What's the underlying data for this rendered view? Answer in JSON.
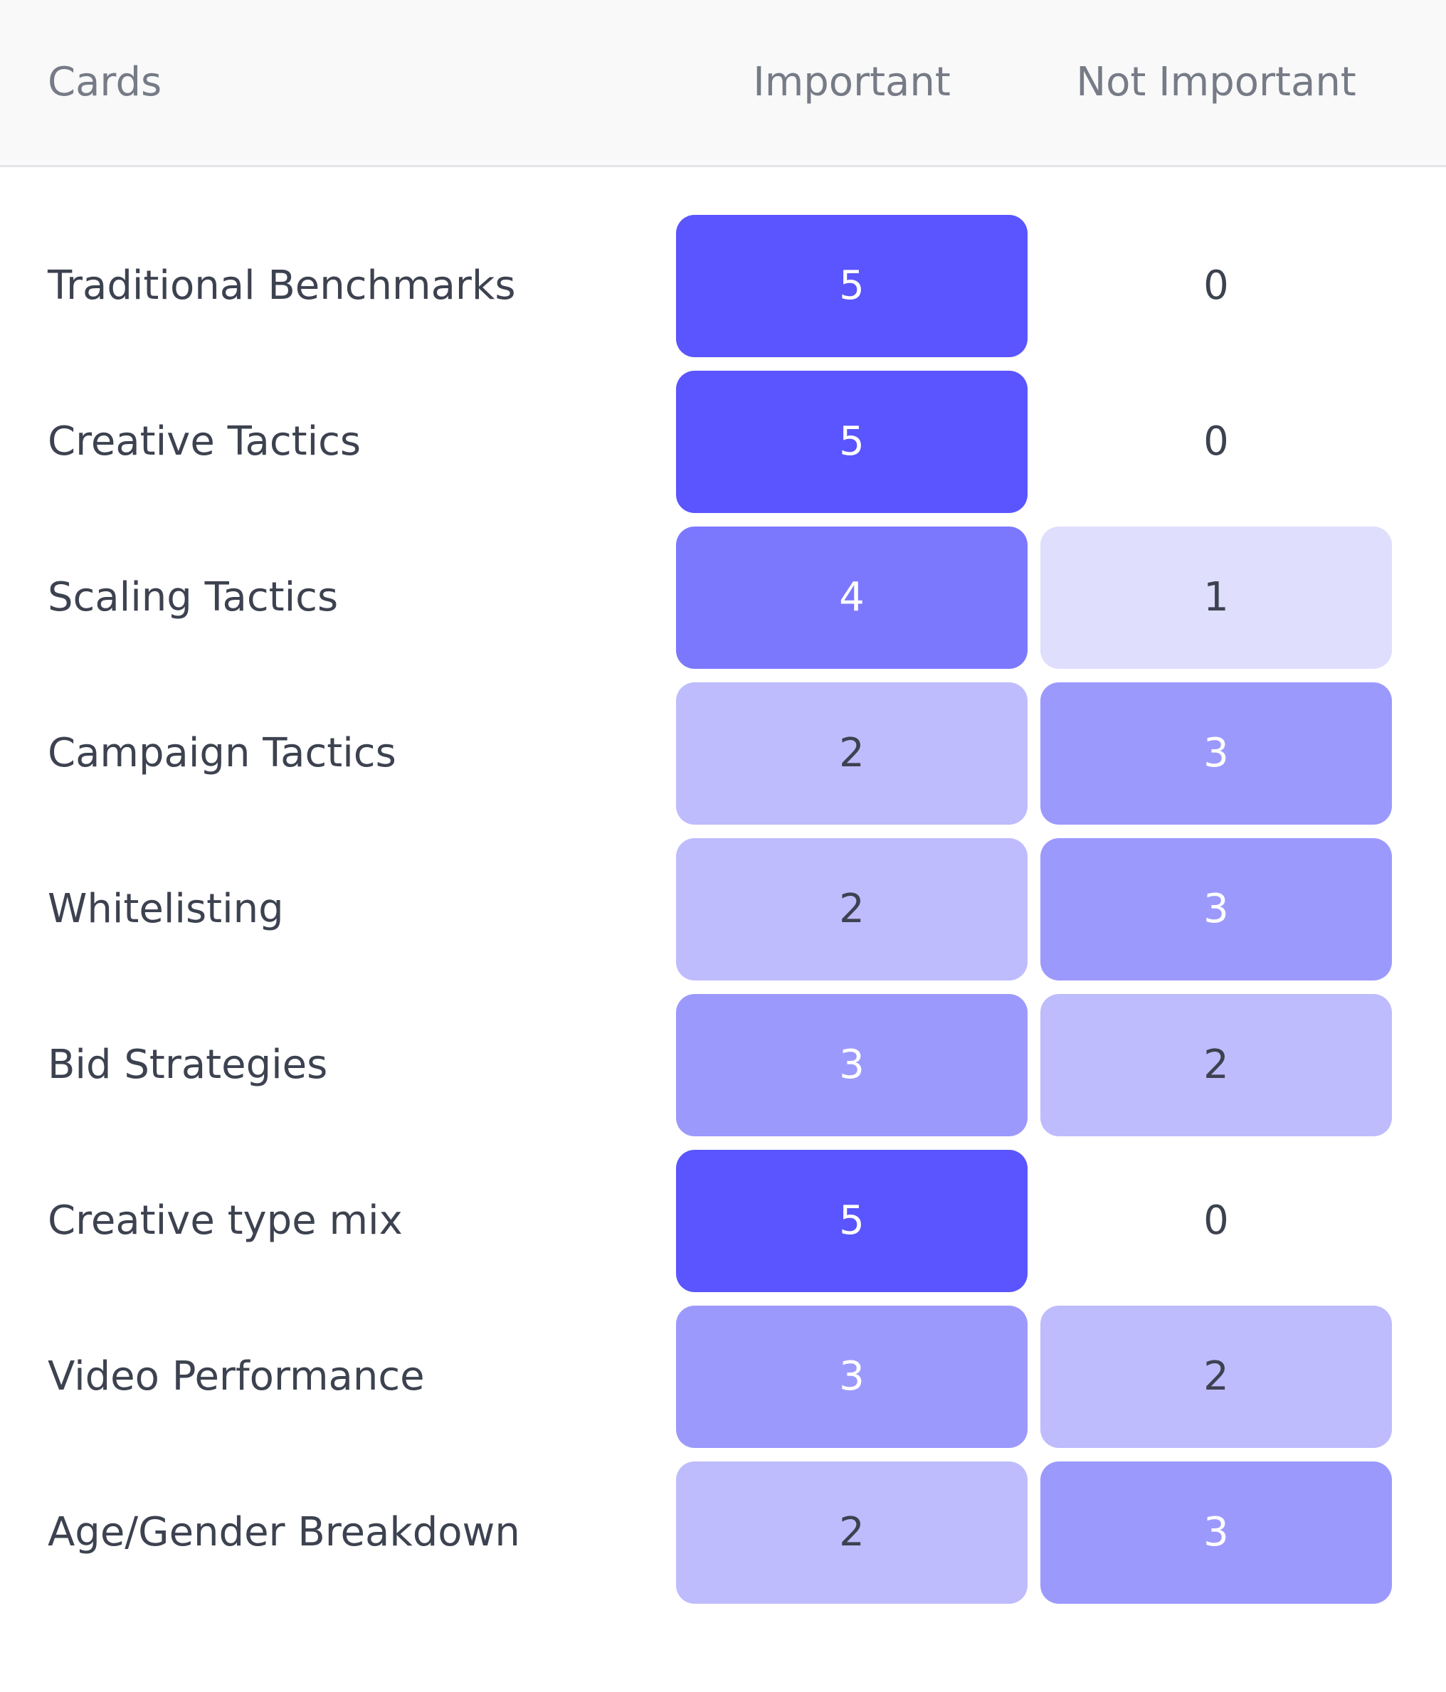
{
  "chart_data": {
    "type": "heatmap",
    "row_header": "Cards",
    "columns": [
      "Important",
      "Not Important"
    ],
    "rows": [
      {
        "label": "Traditional Benchmarks",
        "values": [
          5,
          0
        ]
      },
      {
        "label": "Creative Tactics",
        "values": [
          5,
          0
        ]
      },
      {
        "label": "Scaling Tactics",
        "values": [
          4,
          1
        ]
      },
      {
        "label": "Campaign Tactics",
        "values": [
          2,
          3
        ]
      },
      {
        "label": "Whitelisting",
        "values": [
          2,
          3
        ]
      },
      {
        "label": "Bid Strategies",
        "values": [
          3,
          2
        ]
      },
      {
        "label": "Creative type mix",
        "values": [
          5,
          0
        ]
      },
      {
        "label": "Video Performance",
        "values": [
          3,
          2
        ]
      },
      {
        "label": "Age/Gender Breakdown",
        "values": [
          2,
          3
        ]
      }
    ],
    "value_range": [
      0,
      5
    ]
  },
  "colors": {
    "scale": {
      "0": "transparent",
      "1": "#dfdefd",
      "2": "#bebcfd",
      "3": "#9c99fd",
      "4": "#7b78fe",
      "5": "#5a55fe"
    },
    "text_dark": "#3d4250",
    "text_light": "#ffffff"
  }
}
